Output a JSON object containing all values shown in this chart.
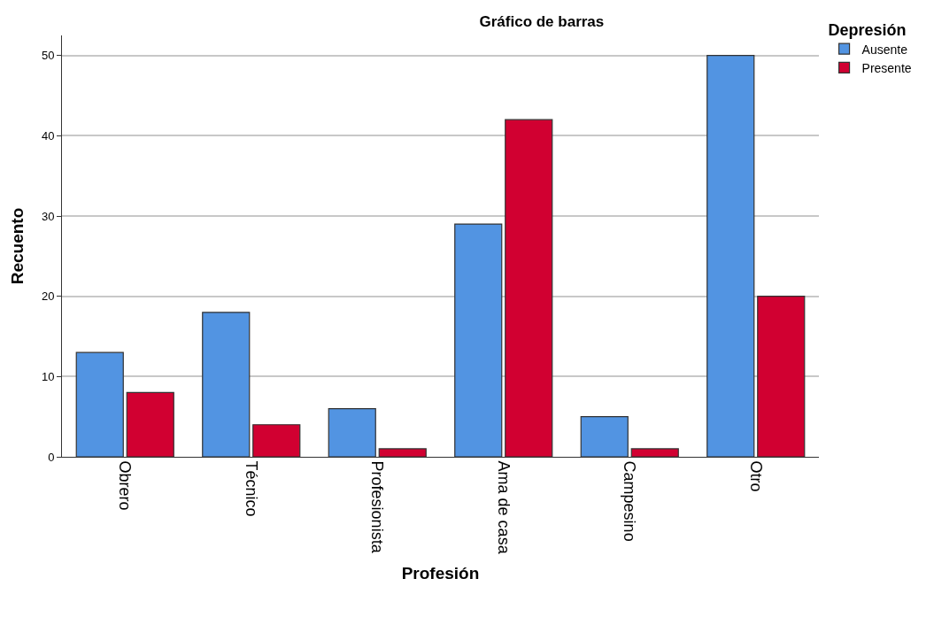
{
  "chart_data": {
    "type": "bar",
    "title": "Gráfico de barras",
    "xlabel": "Profesión",
    "ylabel": "Recuento",
    "legend_title": "Depresión",
    "categories": [
      "Obrero",
      "Técnico",
      "Profesionista",
      "Ama de casa",
      "Campesino",
      "Otro"
    ],
    "series": [
      {
        "name": "Ausente",
        "color": "#5294e2",
        "values": [
          13,
          18,
          6,
          29,
          5,
          50
        ]
      },
      {
        "name": "Presente",
        "color": "#d10031",
        "values": [
          8,
          4,
          1,
          42,
          1,
          20
        ]
      }
    ],
    "ylim": [
      0,
      52.5
    ],
    "yticks": [
      0,
      10,
      20,
      30,
      40,
      50
    ],
    "grid": "y",
    "legend": "top right"
  }
}
